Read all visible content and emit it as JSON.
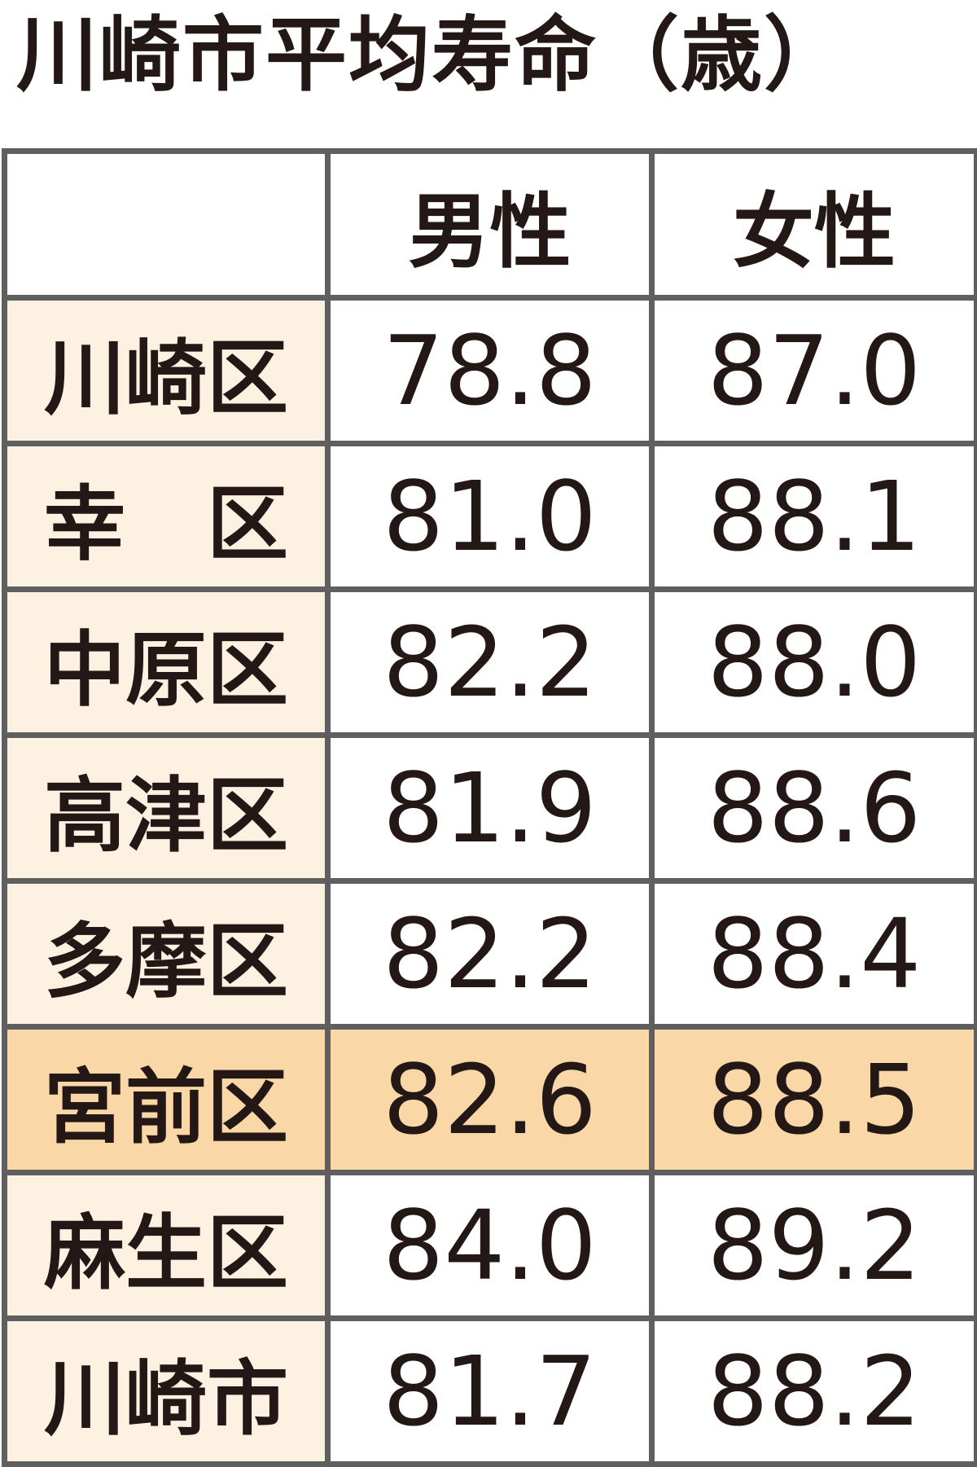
{
  "title": "川崎市平均寿命（歳）",
  "colors": {
    "name_cell": "#fdf2e1",
    "highlight_row": "#f9d7a6",
    "border": "#5f5f5f",
    "text": "#231815"
  },
  "headers": [
    "",
    "男性",
    "女性"
  ],
  "rows": [
    {
      "name": "川崎区",
      "male": "78.8",
      "female": "87.0",
      "highlight": false
    },
    {
      "name": "幸　区",
      "male": "81.0",
      "female": "88.1",
      "highlight": false
    },
    {
      "name": "中原区",
      "male": "82.2",
      "female": "88.0",
      "highlight": false
    },
    {
      "name": "高津区",
      "male": "81.9",
      "female": "88.6",
      "highlight": false
    },
    {
      "name": "多摩区",
      "male": "82.2",
      "female": "88.4",
      "highlight": false
    },
    {
      "name": "宮前区",
      "male": "82.6",
      "female": "88.5",
      "highlight": true
    },
    {
      "name": "麻生区",
      "male": "84.0",
      "female": "89.2",
      "highlight": false
    },
    {
      "name": "川崎市",
      "male": "81.7",
      "female": "88.2",
      "highlight": false
    }
  ]
}
